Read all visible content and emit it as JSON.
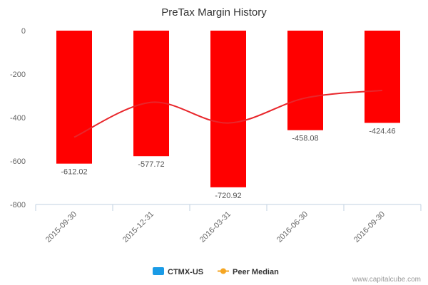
{
  "chart_data": {
    "type": "bar",
    "title": "PreTax Margin History",
    "categories": [
      "2015-09-30",
      "2015-12-31",
      "2016-03-31",
      "2016-06-30",
      "2016-09-30"
    ],
    "series": [
      {
        "name": "CTMX-US",
        "type": "bar",
        "values": [
          -612.02,
          -577.72,
          -720.92,
          -458.08,
          -424.46
        ],
        "data_labels": [
          "-612.02",
          "-577.72",
          "-720.92",
          "-458.08",
          "-424.46"
        ],
        "legend_color": "#1a9be6",
        "bar_color": "#ff0000"
      },
      {
        "name": "Peer Median",
        "type": "line",
        "values": [
          -490,
          -330,
          -425,
          -310,
          -275
        ],
        "color": "#e8262b",
        "legend_color": "#f5a623"
      }
    ],
    "y_ticks": [
      "0",
      "-200",
      "-400",
      "-600",
      "-800"
    ],
    "ylim": [
      -800,
      0
    ],
    "grid": false,
    "legend_position": "bottom-center"
  },
  "credit": "www.capitalcube.com"
}
